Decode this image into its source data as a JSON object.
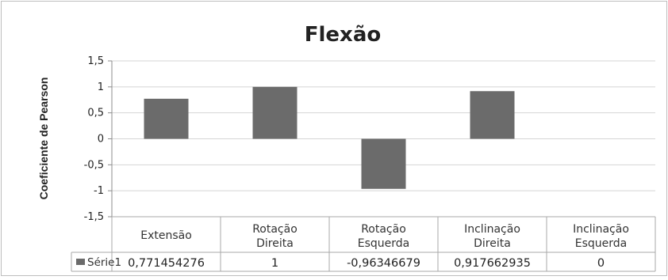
{
  "chart_data": {
    "type": "bar",
    "title": "Flexão",
    "xlabel": "",
    "ylabel": "Coeficiente de Pearson",
    "ylim": [
      -1.5,
      1.5
    ],
    "yticks": [
      "1,5",
      "1",
      "0,5",
      "0",
      "-0,5",
      "-1",
      "-1,5"
    ],
    "grid": true,
    "legend_placement": "data-table-left",
    "categories": [
      [
        "Extensão"
      ],
      [
        "Rotação",
        "Direita"
      ],
      [
        "Rotação",
        "Esquerda"
      ],
      [
        "Inclinação",
        "Direita"
      ],
      [
        "Inclinação",
        "Esquerda"
      ]
    ],
    "series": [
      {
        "name": "Série1",
        "color": "#6b6b6b",
        "values": [
          0.771454276,
          1,
          -0.96346679,
          0.917662935,
          0
        ],
        "value_labels": [
          "0,771454276",
          "1",
          "-0,96346679",
          "0,917662935",
          "0"
        ]
      }
    ]
  }
}
